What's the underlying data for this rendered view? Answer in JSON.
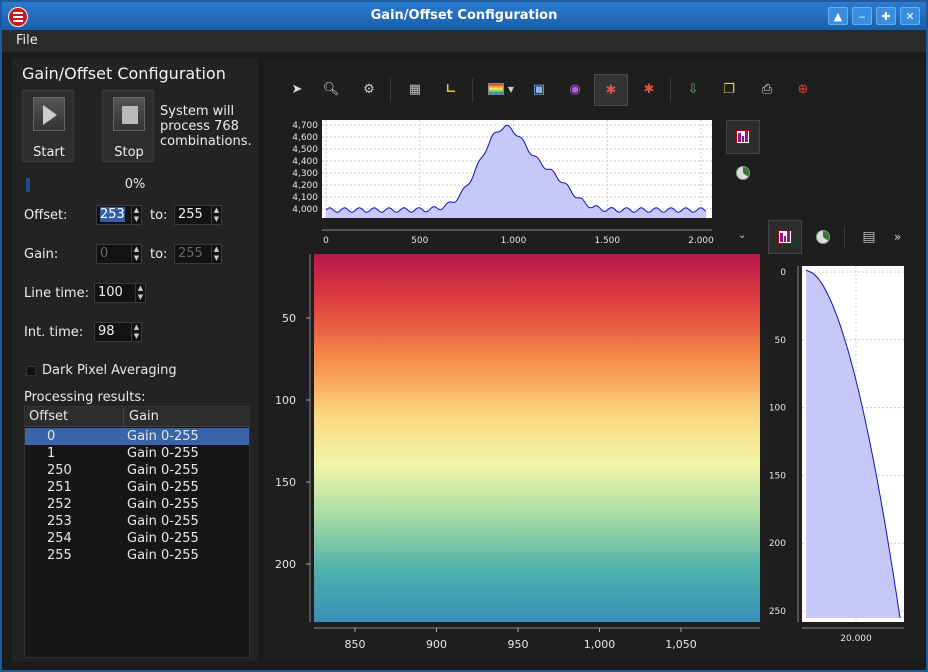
{
  "window": {
    "title": "Gain/Offset Configuration"
  },
  "menu": {
    "file": "File"
  },
  "left": {
    "heading": "Gain/Offset Configuration",
    "start_label": "Start",
    "stop_label": "Stop",
    "system_text": "System will process 768 combinations.",
    "progress_text": "0%",
    "progress_value": 0,
    "offset_label": "Offset:",
    "offset_from": "253",
    "offset_to_label": "to:",
    "offset_to": "255",
    "gain_label": "Gain:",
    "gain_from": "0",
    "gain_to_label": "to:",
    "gain_to": "255",
    "line_time_label": "Line time:",
    "line_time": "100",
    "int_time_label": "Int. time:",
    "int_time": "98",
    "dark_pixel_label": "Dark Pixel Averaging",
    "dark_pixel_checked": false,
    "results_label": "Processing results:",
    "columns": [
      "Offset",
      "Gain"
    ],
    "rows": [
      [
        "0",
        "Gain 0-255"
      ],
      [
        "1",
        "Gain 0-255"
      ],
      [
        "250",
        "Gain 0-255"
      ],
      [
        "251",
        "Gain 0-255"
      ],
      [
        "252",
        "Gain 0-255"
      ],
      [
        "253",
        "Gain 0-255"
      ],
      [
        "254",
        "Gain 0-255"
      ],
      [
        "255",
        "Gain 0-255"
      ]
    ],
    "selected_row": 0
  },
  "toolbar": {
    "icons": [
      "pointer-icon",
      "zoom-icon",
      "settings-icon",
      "grid-icon",
      "axes-icon",
      "colormap-icon",
      "display-icon",
      "eye-icon",
      "bug-active-icon",
      "bug-icon",
      "export-icon",
      "copy-icon",
      "print-icon",
      "help-icon"
    ]
  },
  "top_profile": {
    "y_ticks": [
      "4,700",
      "4,600",
      "4,500",
      "4,400",
      "4,300",
      "4,200",
      "4,100",
      "4,000"
    ],
    "x_ticks": [
      "0",
      "500",
      "1.000",
      "1.500",
      "2.000"
    ]
  },
  "image_view": {
    "y_ticks": [
      "50",
      "100",
      "150",
      "200"
    ],
    "x_ticks": [
      "850",
      "900",
      "950",
      "1,000",
      "1,050"
    ],
    "colormap": [
      "#b8154a",
      "#e0463e",
      "#f58b4a",
      "#fcd37c",
      "#f3f6a8",
      "#a6dba4",
      "#4fb2aa",
      "#3a8fb8"
    ]
  },
  "side_profile": {
    "y_ticks": [
      "0",
      "50",
      "100",
      "150",
      "200",
      "250"
    ],
    "x_ticks": [
      "20.000"
    ],
    "more": "»",
    "expand": "⌄"
  },
  "colors": {
    "accent": "#3a64a8",
    "fill": "#c8c8f8",
    "line": "#1010c0"
  }
}
